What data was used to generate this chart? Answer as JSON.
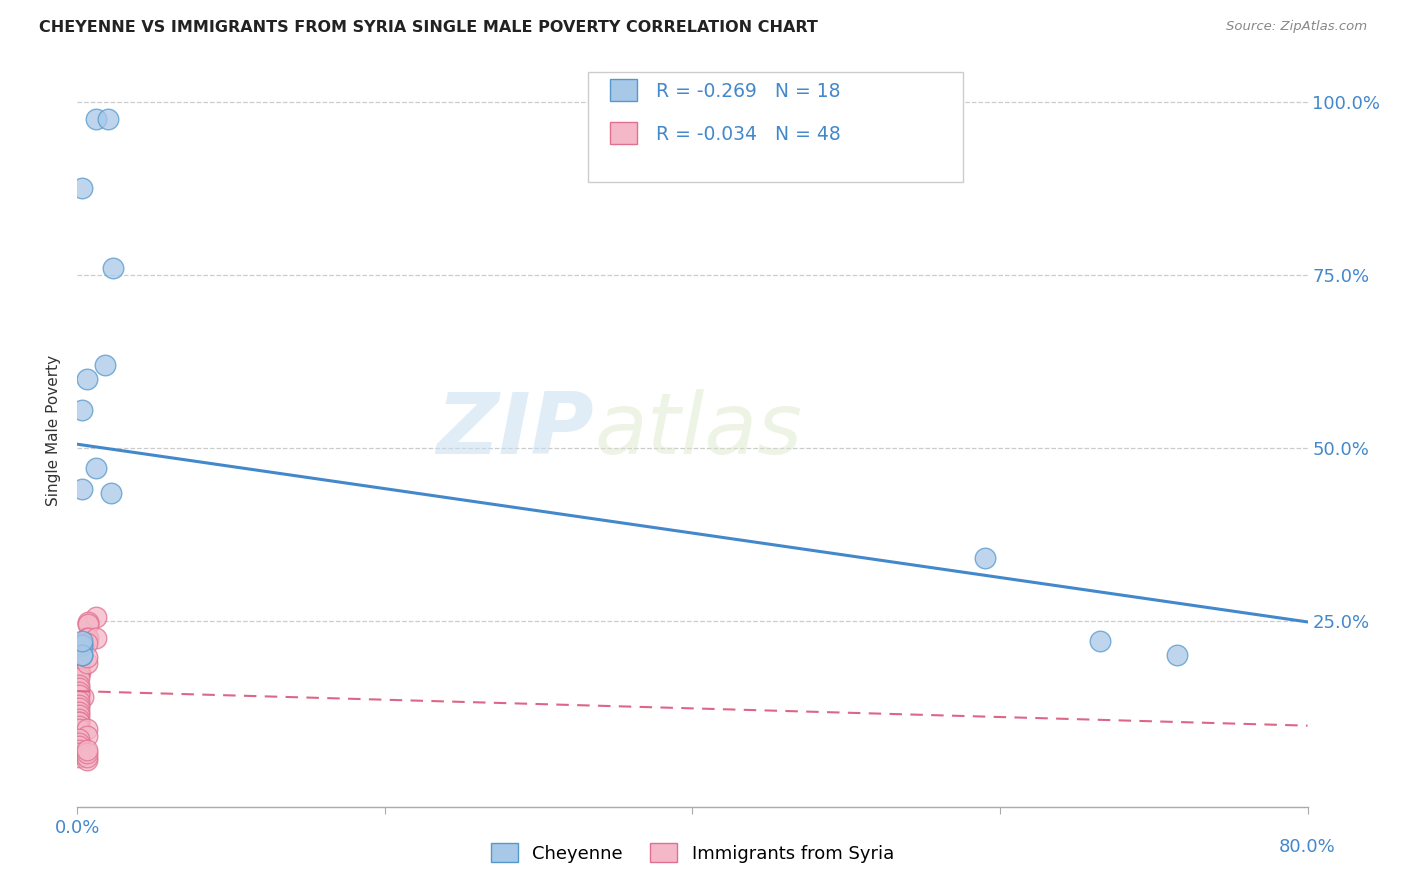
{
  "title": "CHEYENNE VS IMMIGRANTS FROM SYRIA SINGLE MALE POVERTY CORRELATION CHART",
  "source": "Source: ZipAtlas.com",
  "ylabel": "Single Male Poverty",
  "right_yticks": [
    "100.0%",
    "75.0%",
    "50.0%",
    "25.0%"
  ],
  "right_ytick_vals": [
    1.0,
    0.75,
    0.5,
    0.25
  ],
  "legend_label1": "Cheyenne",
  "legend_label2": "Immigrants from Syria",
  "R1": -0.269,
  "N1": 18,
  "R2": -0.034,
  "N2": 48,
  "color_blue_fill": "#a8c8e8",
  "color_pink_fill": "#f4b8c8",
  "color_blue_edge": "#5599cc",
  "color_pink_edge": "#e07090",
  "color_blue_line": "#4488cc",
  "color_pink_line": "#dd6688",
  "watermark_zip": "ZIP",
  "watermark_atlas": "atlas",
  "cheyenne_x": [
    0.012,
    0.02,
    0.023,
    0.003,
    0.006,
    0.003,
    0.012,
    0.018,
    0.022,
    0.003,
    0.003,
    0.003,
    0.003,
    0.59,
    0.665,
    0.715,
    0.003,
    0.003
  ],
  "cheyenne_y": [
    0.975,
    0.975,
    0.76,
    0.875,
    0.6,
    0.555,
    0.47,
    0.62,
    0.435,
    0.44,
    0.215,
    0.215,
    0.2,
    0.34,
    0.22,
    0.2,
    0.2,
    0.22
  ],
  "syria_x": [
    0.002,
    0.007,
    0.012,
    0.007,
    0.007,
    0.004,
    0.001,
    0.001,
    0.001,
    0.001,
    0.001,
    0.001,
    0.001,
    0.001,
    0.001,
    0.001,
    0.001,
    0.001,
    0.001,
    0.001,
    0.006,
    0.006,
    0.007,
    0.012,
    0.006,
    0.006,
    0.001,
    0.001,
    0.001,
    0.001,
    0.001,
    0.001,
    0.001,
    0.001,
    0.001,
    0.001,
    0.006,
    0.006,
    0.001,
    0.001,
    0.001,
    0.001,
    0.001,
    0.001,
    0.006,
    0.006,
    0.006,
    0.006
  ],
  "syria_y": [
    0.175,
    0.245,
    0.255,
    0.248,
    0.245,
    0.14,
    0.183,
    0.188,
    0.193,
    0.198,
    0.192,
    0.187,
    0.182,
    0.177,
    0.172,
    0.167,
    0.157,
    0.152,
    0.147,
    0.142,
    0.188,
    0.225,
    0.225,
    0.225,
    0.218,
    0.198,
    0.133,
    0.128,
    0.123,
    0.118,
    0.113,
    0.108,
    0.103,
    0.103,
    0.098,
    0.093,
    0.093,
    0.083,
    0.078,
    0.073,
    0.068,
    0.063,
    0.058,
    0.053,
    0.048,
    0.053,
    0.058,
    0.063
  ],
  "xlim": [
    0.0,
    0.8
  ],
  "ylim": [
    -0.02,
    1.07
  ],
  "blue_trend_x": [
    0.0,
    0.8
  ],
  "blue_trend_y": [
    0.505,
    0.248
  ],
  "pink_trend_x": [
    0.0,
    0.8
  ],
  "pink_trend_y": [
    0.148,
    0.098
  ]
}
